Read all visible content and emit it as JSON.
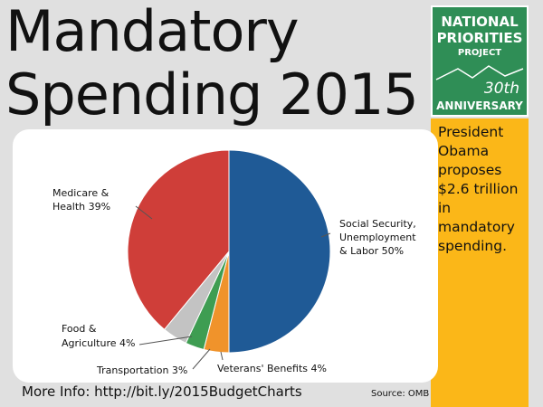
{
  "title": {
    "line1": "Mandatory",
    "line2": "Spending 2015"
  },
  "logo": {
    "line1": "NATIONAL",
    "line2": "PRIORITIES",
    "line3": "PROJECT",
    "line4": "30th",
    "line5": "ANNIVERSARY"
  },
  "sidebar": {
    "text": "President Obama proposes $2.6 trillion in mandatory spending."
  },
  "footer": {
    "more_info": "More Info: http://bit.ly/2015BudgetCharts",
    "source": "Source: OMB"
  },
  "colors": {
    "background": "#e0e0e0",
    "logo_green": "#2f8e56",
    "sidebar_yellow": "#fbb718",
    "social_security": "#1f5a96",
    "veterans": "#f0932b",
    "transportation": "#3e9d52",
    "food_agriculture": "#c3c3c3",
    "medicare_health": "#cf3e39"
  },
  "chart_data": {
    "type": "pie",
    "title": "",
    "slices": [
      {
        "label": "Social Security, Unemployment & Labor 50%",
        "value": 50,
        "color": "#1f5a96"
      },
      {
        "label": "Veterans' Benefits 4%",
        "value": 4,
        "color": "#f0932b"
      },
      {
        "label": "Transportation 3%",
        "value": 3,
        "color": "#3e9d52"
      },
      {
        "label": "Food & Agriculture 4%",
        "value": 4,
        "color": "#c3c3c3"
      },
      {
        "label": "Medicare & Health 39%",
        "value": 39,
        "color": "#cf3e39"
      }
    ]
  }
}
